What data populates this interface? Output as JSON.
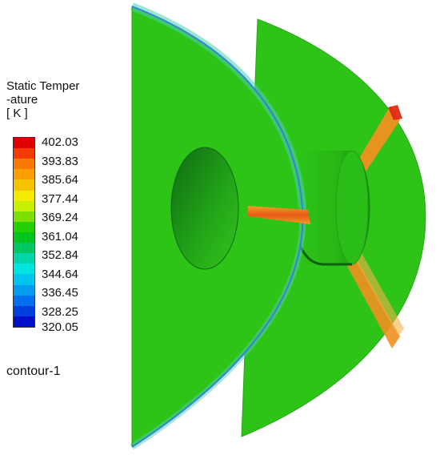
{
  "legend": {
    "title_line1": "Static Temper",
    "title_line2": "-ature",
    "units": "[ K ]",
    "ticks": [
      "402.03",
      "393.83",
      "385.64",
      "377.44",
      "369.24",
      "361.04",
      "352.84",
      "344.64",
      "336.45",
      "328.25",
      "320.05"
    ],
    "colors": [
      "#e00000",
      "#f43a00",
      "#fa7a00",
      "#fca000",
      "#f6c300",
      "#f2ea00",
      "#c8ee00",
      "#7de100",
      "#24d000",
      "#00c520",
      "#00c860",
      "#00d6a8",
      "#00e4e0",
      "#00c4f0",
      "#009cf0",
      "#0070ec",
      "#0040e0",
      "#0010c8"
    ]
  },
  "caption": "contour-1",
  "scene_colors": {
    "base": "#2ec417",
    "bright": "#38cc22",
    "hot_orange": "#f08a1a",
    "hot_red": "#e03a1a",
    "edge_blue": "#3a7fd8",
    "edge_cyan": "#49d2b0",
    "dark_green": "#127a12"
  }
}
